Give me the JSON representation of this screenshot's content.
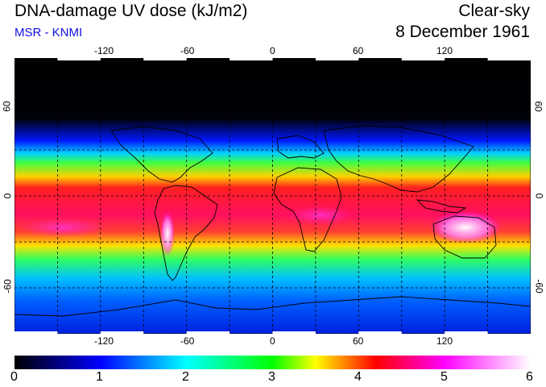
{
  "header": {
    "title": "DNA-damage UV dose (kJ/m2)",
    "source": "MSR - KNMI",
    "sky_condition": "Clear-sky",
    "date": "8 December 1961"
  },
  "map": {
    "lon_ticks": [
      "-120",
      "-60",
      "0",
      "60",
      "120"
    ],
    "lon_values": [
      -120,
      -60,
      0,
      60,
      120
    ],
    "lat_ticks": [
      "60",
      "0",
      "-60"
    ],
    "lat_values": [
      60,
      0,
      -60
    ],
    "lon_range": [
      -180,
      180
    ],
    "lat_range": [
      -90,
      90
    ]
  },
  "colorbar": {
    "ticks": [
      "0",
      "1",
      "2",
      "3",
      "4",
      "5",
      "6"
    ],
    "range": [
      0,
      6
    ],
    "colors": [
      "#000000",
      "#0000ff",
      "#00ffff",
      "#00ff00",
      "#ffff00",
      "#ff0000",
      "#ff00ff",
      "#ffffff"
    ]
  }
}
